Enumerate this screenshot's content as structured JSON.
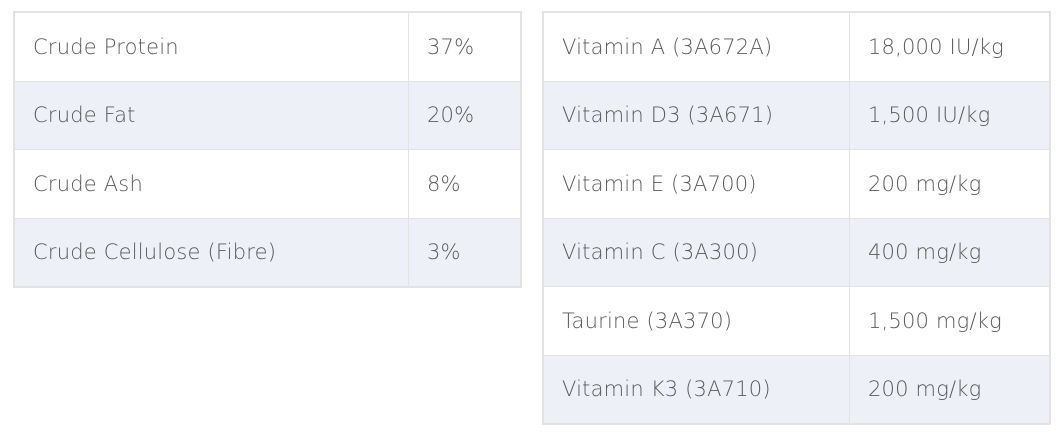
{
  "analytical_constituents": {
    "rows": [
      {
        "name": "Crude Protein",
        "value": "37%"
      },
      {
        "name": "Crude Fat",
        "value": "20%"
      },
      {
        "name": "Crude Ash",
        "value": "8%"
      },
      {
        "name": "Crude Cellulose (Fibre)",
        "value": "3%"
      }
    ]
  },
  "additives": {
    "rows": [
      {
        "name": "Vitamin A (3A672A)",
        "value": "18,000 IU/kg"
      },
      {
        "name": "Vitamin D3 (3A671)",
        "value": "1,500 IU/kg"
      },
      {
        "name": "Vitamin E (3A700)",
        "value": "200 mg/kg"
      },
      {
        "name": "Vitamin C (3A300)",
        "value": "400 mg/kg"
      },
      {
        "name": "Taurine (3A370)",
        "value": "1,500 mg/kg"
      },
      {
        "name": "Vitamin K3 (3A710)",
        "value": "200 mg/kg"
      }
    ]
  }
}
